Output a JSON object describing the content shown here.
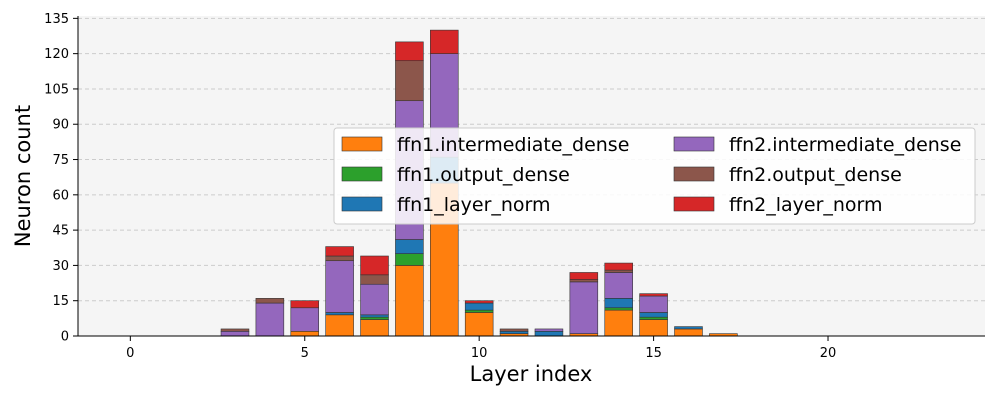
{
  "chart_data": {
    "type": "bar",
    "stacked": true,
    "title": "",
    "xlabel": "Layer index",
    "ylabel": "Neuron count",
    "xlim": [
      -1.5,
      24.5
    ],
    "ylim": [
      0,
      136
    ],
    "xticks": [
      0,
      5,
      10,
      15,
      20
    ],
    "yticks": [
      0,
      15,
      30,
      45,
      60,
      75,
      90,
      105,
      120,
      135
    ],
    "grid": "y dashed",
    "legend_position": "center-right",
    "categories": [
      0,
      1,
      2,
      3,
      4,
      5,
      6,
      7,
      8,
      9,
      10,
      11,
      12,
      13,
      14,
      15,
      16,
      17,
      18,
      19,
      20,
      21,
      22,
      23
    ],
    "series": [
      {
        "name": "ffn1.intermediate_dense",
        "color": "#ff7f0e",
        "values": [
          0,
          0,
          0,
          0,
          0,
          2,
          9,
          7,
          30,
          65,
          10,
          1,
          0,
          1,
          11,
          7,
          3,
          1,
          0,
          0,
          0,
          0,
          0,
          0
        ]
      },
      {
        "name": "ffn1.output_dense",
        "color": "#2ca02c",
        "values": [
          0,
          0,
          0,
          0,
          0,
          0,
          0,
          1,
          5,
          0,
          1,
          0,
          0,
          0,
          1,
          1,
          0,
          0,
          0,
          0,
          0,
          0,
          0,
          0
        ]
      },
      {
        "name": "ffn1_layer_norm",
        "color": "#1f77b4",
        "values": [
          0,
          0,
          0,
          0,
          0,
          0,
          1,
          1,
          6,
          11,
          3,
          1,
          2,
          0,
          4,
          2,
          1,
          0,
          0,
          0,
          0,
          0,
          0,
          0
        ]
      },
      {
        "name": "ffn2.intermediate_dense",
        "color": "#9467bd",
        "values": [
          0,
          0,
          0,
          2,
          14,
          10,
          22,
          13,
          59,
          44,
          0,
          0,
          1,
          22,
          11,
          7,
          0,
          0,
          0,
          0,
          0,
          0,
          0,
          0
        ]
      },
      {
        "name": "ffn2.output_dense",
        "color": "#8c564b",
        "values": [
          0,
          0,
          0,
          1,
          2,
          0,
          2,
          4,
          17,
          0,
          0,
          1,
          0,
          1,
          1,
          0,
          0,
          0,
          0,
          0,
          0,
          0,
          0,
          0
        ]
      },
      {
        "name": "ffn2_layer_norm",
        "color": "#d62728",
        "values": [
          0,
          0,
          0,
          0,
          0,
          3,
          4,
          8,
          8,
          10,
          1,
          0,
          0,
          3,
          3,
          1,
          0,
          0,
          0,
          0,
          0,
          0,
          0,
          0
        ]
      }
    ]
  }
}
